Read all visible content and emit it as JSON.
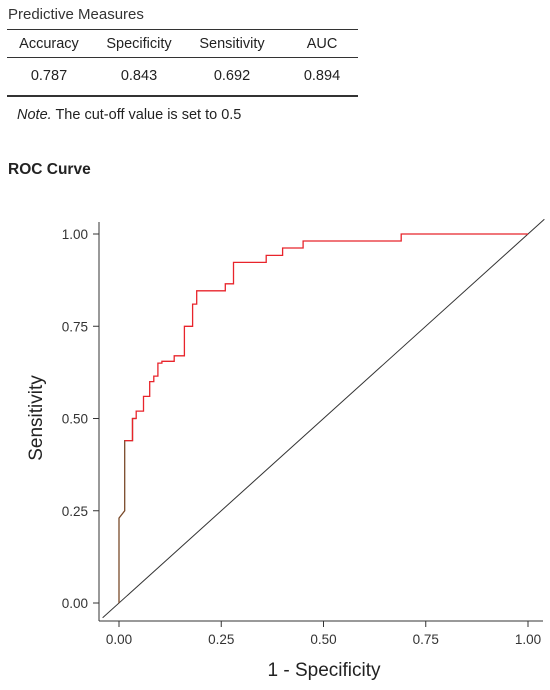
{
  "table": {
    "title": "Predictive Measures",
    "columns": [
      "Accuracy",
      "Specificity",
      "Sensitivity",
      "AUC"
    ],
    "values": [
      "0.787",
      "0.843",
      "0.692",
      "0.894"
    ],
    "note_prefix": "Note.",
    "note_text": " The cut-off value is set to 0.5"
  },
  "chart_title": "ROC Curve",
  "chart_data": {
    "type": "line",
    "title": "ROC Curve",
    "xlabel": "1 - Specificity",
    "ylabel": "Sensitivity",
    "xlim": [
      0,
      1
    ],
    "ylim": [
      0,
      1
    ],
    "xticks": [
      "0.00",
      "0.25",
      "0.50",
      "0.75",
      "1.00"
    ],
    "yticks": [
      "0.00",
      "0.25",
      "0.50",
      "0.75",
      "1.00"
    ],
    "grid": false,
    "series": [
      {
        "name": "",
        "color": "#e8242b",
        "low_color": "#7a4a2a",
        "x": [
          0,
          0,
          0.014,
          0.014,
          0.033,
          0.033,
          0.042,
          0.042,
          0.06,
          0.06,
          0.075,
          0.075,
          0.085,
          0.085,
          0.095,
          0.095,
          0.105,
          0.105,
          0.135,
          0.135,
          0.16,
          0.16,
          0.18,
          0.18,
          0.19,
          0.19,
          0.26,
          0.26,
          0.28,
          0.28,
          0.36,
          0.36,
          0.4,
          0.4,
          0.45,
          0.45,
          0.69,
          0.69,
          1.0
        ],
        "y": [
          0,
          0.23,
          0.25,
          0.44,
          0.44,
          0.5,
          0.5,
          0.52,
          0.52,
          0.56,
          0.56,
          0.6,
          0.6,
          0.615,
          0.615,
          0.65,
          0.65,
          0.655,
          0.655,
          0.67,
          0.67,
          0.75,
          0.75,
          0.81,
          0.81,
          0.846,
          0.846,
          0.865,
          0.865,
          0.923,
          0.923,
          0.942,
          0.942,
          0.962,
          0.962,
          0.981,
          0.981,
          1.0,
          1.0
        ]
      }
    ],
    "reference_line": {
      "x": [
        0,
        1
      ],
      "y": [
        0,
        1
      ],
      "color": "#333333"
    }
  }
}
